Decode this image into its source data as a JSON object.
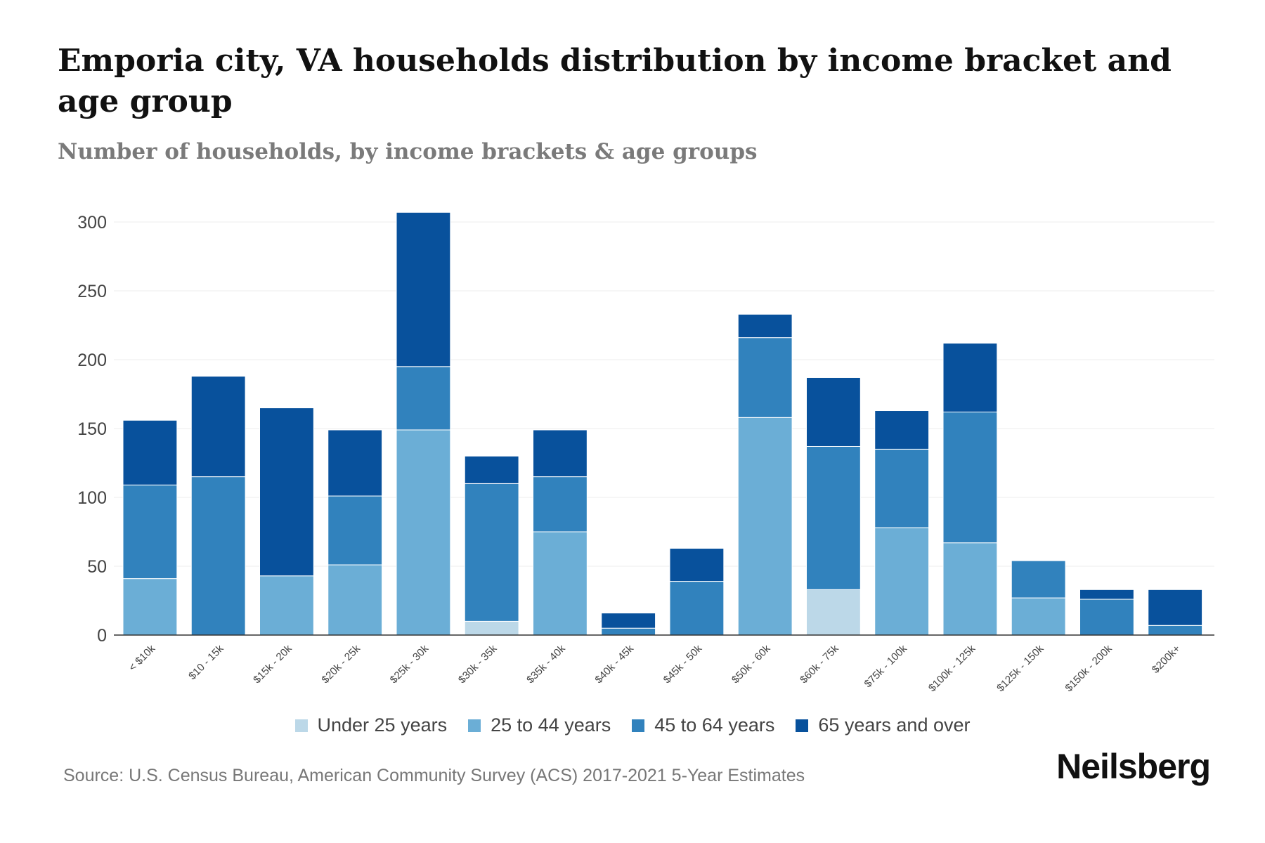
{
  "chart_data": {
    "type": "bar",
    "stacked": true,
    "title": "Emporia city, VA households distribution by income bracket and age group",
    "subtitle": "Number of households, by income brackets & age groups",
    "xlabel": "",
    "ylabel": "",
    "ylim": [
      0,
      300
    ],
    "yticks": [
      0,
      50,
      100,
      150,
      200,
      250,
      300
    ],
    "grid": true,
    "legend_position": "bottom",
    "categories": [
      "< $10k",
      "$10 - 15k",
      "$15k - 20k",
      "$20k - 25k",
      "$25k - 30k",
      "$30k - 35k",
      "$35k - 40k",
      "$40k - 45k",
      "$45k - 50k",
      "$50k - 60k",
      "$60k - 75k",
      "$75k - 100k",
      "$100k - 125k",
      "$125k - 150k",
      "$150k - 200k",
      "$200k+"
    ],
    "series": [
      {
        "name": "Under 25 years",
        "color": "#bcd8e8",
        "values": [
          0,
          0,
          0,
          0,
          0,
          10,
          0,
          0,
          0,
          0,
          33,
          0,
          0,
          0,
          0,
          0
        ]
      },
      {
        "name": "25 to 44 years",
        "color": "#6baed6",
        "values": [
          41,
          0,
          43,
          51,
          149,
          0,
          75,
          0,
          0,
          158,
          0,
          78,
          67,
          27,
          0,
          0
        ]
      },
      {
        "name": "45 to 64 years",
        "color": "#3182bd",
        "values": [
          68,
          115,
          0,
          50,
          46,
          100,
          40,
          5,
          39,
          58,
          104,
          57,
          95,
          27,
          26,
          7
        ]
      },
      {
        "name": "65 years and over",
        "color": "#08519c",
        "values": [
          47,
          73,
          122,
          48,
          112,
          20,
          34,
          11,
          24,
          17,
          50,
          28,
          50,
          0,
          7,
          26
        ]
      }
    ]
  },
  "source": "Source: U.S. Census Bureau, American Community Survey (ACS) 2017-2021 5-Year Estimates",
  "logo": "Neilsberg"
}
